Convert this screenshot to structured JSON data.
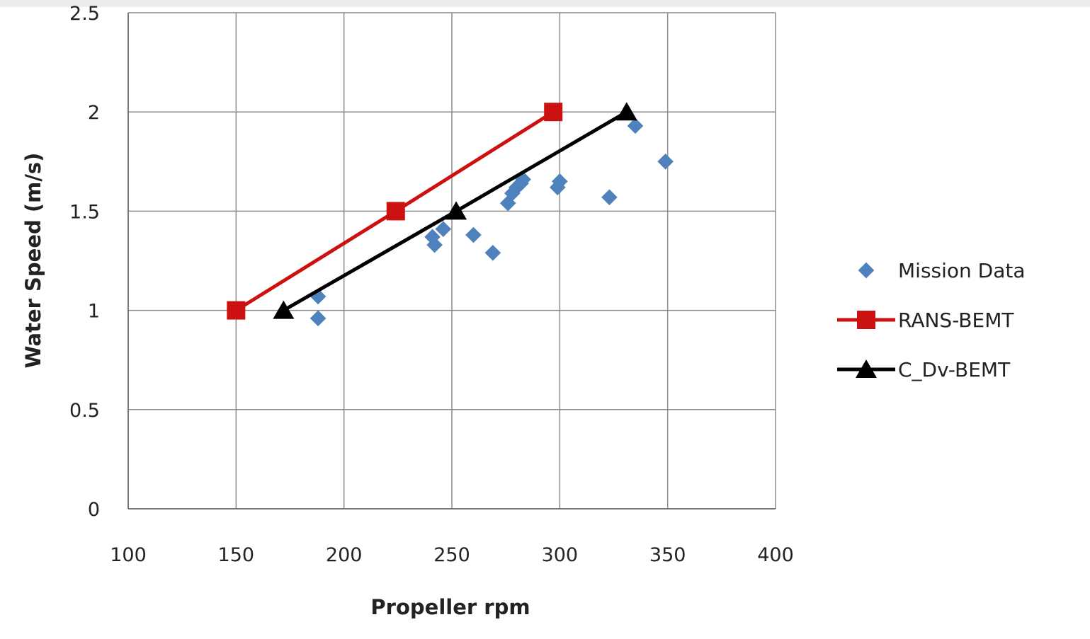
{
  "chart_data": {
    "type": "scatter",
    "title": "",
    "xlabel": "Propeller rpm",
    "ylabel": "Water Speed (m/s)",
    "xlim": [
      100,
      400
    ],
    "ylim": [
      0,
      2.5
    ],
    "xticks": [
      100,
      150,
      200,
      250,
      300,
      350,
      400
    ],
    "yticks": [
      0,
      0.5,
      1,
      1.5,
      2,
      2.5
    ],
    "xtick_labels": [
      "100",
      "150",
      "200",
      "250",
      "300",
      "350",
      "400"
    ],
    "ytick_labels": [
      "0",
      "0.5",
      "1",
      "1.5",
      "2",
      "2.5"
    ],
    "grid": true,
    "legend_position": "right",
    "series": [
      {
        "name": "Mission Data",
        "marker": "diamond",
        "line": false,
        "color": "#4f81bd",
        "points": [
          [
            188,
            1.07
          ],
          [
            188,
            0.96
          ],
          [
            241,
            1.37
          ],
          [
            242,
            1.33
          ],
          [
            246,
            1.41
          ],
          [
            260,
            1.38
          ],
          [
            269,
            1.29
          ],
          [
            276,
            1.54
          ],
          [
            278,
            1.59
          ],
          [
            280,
            1.62
          ],
          [
            282,
            1.64
          ],
          [
            283,
            1.66
          ],
          [
            299,
            1.62
          ],
          [
            300,
            1.65
          ],
          [
            323,
            1.57
          ],
          [
            335,
            1.93
          ],
          [
            349,
            1.75
          ]
        ]
      },
      {
        "name": "RANS-BEMT",
        "marker": "square",
        "line": true,
        "color": "#cc1111",
        "points": [
          [
            150,
            1.0
          ],
          [
            224,
            1.5
          ],
          [
            297,
            2.0
          ]
        ]
      },
      {
        "name": "C_Dv-BEMT",
        "marker": "triangle",
        "line": true,
        "color": "#000000",
        "points": [
          [
            172,
            1.0
          ],
          [
            252,
            1.5
          ],
          [
            331,
            2.0
          ]
        ]
      }
    ]
  }
}
